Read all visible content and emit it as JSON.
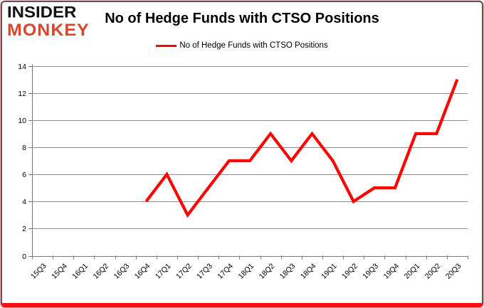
{
  "logo": {
    "line1": "INSIDER",
    "line2": "MONKEY"
  },
  "header": {
    "title": "No of Hedge Funds with CTSO Positions"
  },
  "legend": {
    "label": "No of Hedge Funds with CTSO Positions"
  },
  "colors": {
    "line": "#fe0505",
    "logo_black": "#111111",
    "logo_red": "#d5472e",
    "grid": "#8c8c8c",
    "axis": "#7a7a7a",
    "tick_text": "#000000",
    "frame_border": "#55565a",
    "frame_bottom_bar": "#fd0d0d"
  },
  "chart_data": {
    "type": "line",
    "title": "No of Hedge Funds with CTSO Positions",
    "legend_entries": [
      "No of Hedge Funds with CTSO Positions"
    ],
    "legend_position": "top-center",
    "grid": true,
    "xlabel": "",
    "ylabel": "",
    "ylim": [
      0,
      14
    ],
    "ytick_step": 2,
    "categories": [
      "15Q3",
      "15Q4",
      "16Q1",
      "16Q2",
      "16Q3",
      "16Q4",
      "17Q1",
      "17Q2",
      "17Q3",
      "17Q4",
      "18Q1",
      "18Q2",
      "18Q3",
      "18Q4",
      "19Q1",
      "19Q2",
      "19Q3",
      "19Q4",
      "20Q1",
      "20Q2",
      "20Q3"
    ],
    "series": [
      {
        "name": "No of Hedge Funds with CTSO Positions",
        "values": [
          null,
          null,
          null,
          null,
          null,
          4,
          6,
          3,
          5,
          7,
          7,
          9,
          7,
          9,
          7,
          4,
          5,
          5,
          9,
          9,
          13
        ]
      }
    ]
  }
}
